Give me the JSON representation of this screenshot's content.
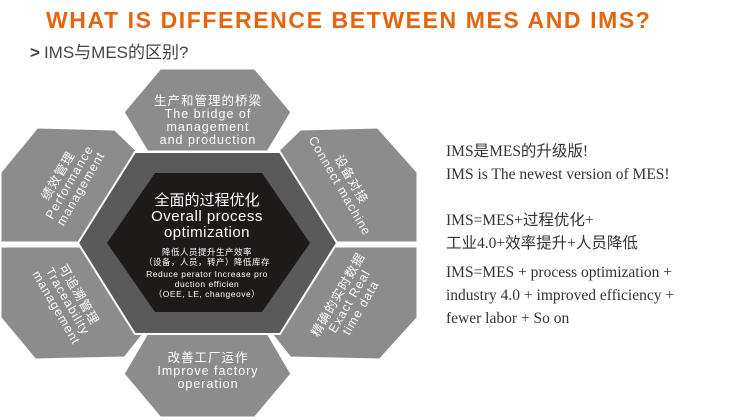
{
  "header": {
    "title": "WHAT IS DIFFERENCE BETWEEN MES AND IMS?",
    "subtitle_icon": "chevron-right-icon",
    "subtitle_chevron": ">",
    "subtitle": "IMS与MES的区别?"
  },
  "diagram": {
    "colors": {
      "outer": "#8c8c8c",
      "ring": "#5a5a5a",
      "core": "#1e1a1a"
    },
    "center": {
      "cn": "全面的过程优化",
      "en1": "Overall process",
      "en2": "optimization",
      "detail_cn1": "降低人员提升生产效率",
      "detail_cn2": "（设备，人员，转产）降低库存",
      "detail_en1": "Reduce perator Increase pro",
      "detail_en2": "duction efficien",
      "detail_en3": "（OEE, LE, changeove）"
    },
    "segments": [
      {
        "cn": "生产和管理的桥梁",
        "en": [
          "The bridge of",
          "management",
          "and production"
        ]
      },
      {
        "cn": "设备对接",
        "en": [
          "Connect machine"
        ]
      },
      {
        "cn": "精确的实时数据",
        "en": [
          "Exact Real",
          "time data"
        ]
      },
      {
        "cn": "改善工厂运作",
        "en": [
          "Improve factory",
          "operation"
        ]
      },
      {
        "cn": "可追溯管理",
        "en": [
          "Traceability",
          "management"
        ]
      },
      {
        "cn": "绩效管理",
        "en": [
          "Performance",
          "management"
        ]
      }
    ]
  },
  "description": {
    "line1": "IMS是MES的升级版!",
    "line2": "IMS is The newest version of MES!",
    "line3": "IMS=MES+过程优化+",
    "line4": "工业4.0+效率提升+人员降低",
    "line5": "IMS=MES + process optimization +",
    "line6": "industry 4.0 + improved efficiency +",
    "line7": "fewer labor + So on"
  }
}
